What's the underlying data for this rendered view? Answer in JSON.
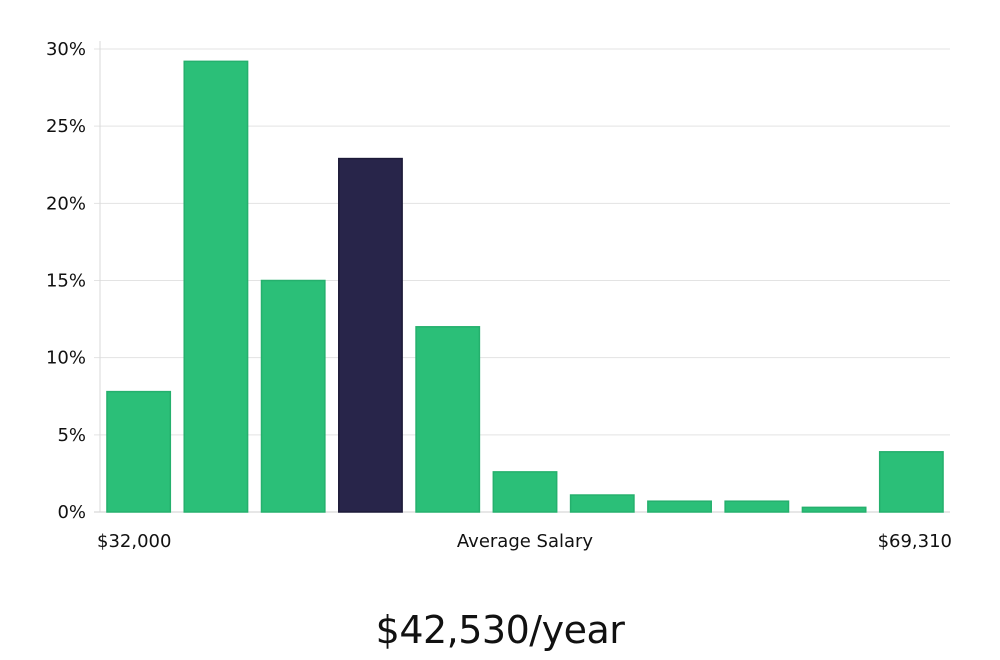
{
  "chart_data": {
    "type": "bar",
    "title": "",
    "xlabel": "Average Salary",
    "ylabel": "",
    "x_min_label": "$32,000",
    "x_max_label": "$69,310",
    "ylim": [
      0,
      30
    ],
    "yticks": [
      0,
      5,
      10,
      15,
      20,
      25,
      30
    ],
    "ytick_labels": [
      "0%",
      "5%",
      "10%",
      "15%",
      "20%",
      "25%",
      "30%"
    ],
    "values": [
      7.8,
      29.2,
      15.0,
      22.9,
      12.0,
      2.6,
      1.1,
      0.7,
      0.7,
      0.3,
      3.9
    ],
    "highlight_index": 3,
    "bar_color": "#2bbf78",
    "highlight_color": "#28254a",
    "grid": true
  },
  "summary": {
    "salary_text": "$42,530/year"
  }
}
